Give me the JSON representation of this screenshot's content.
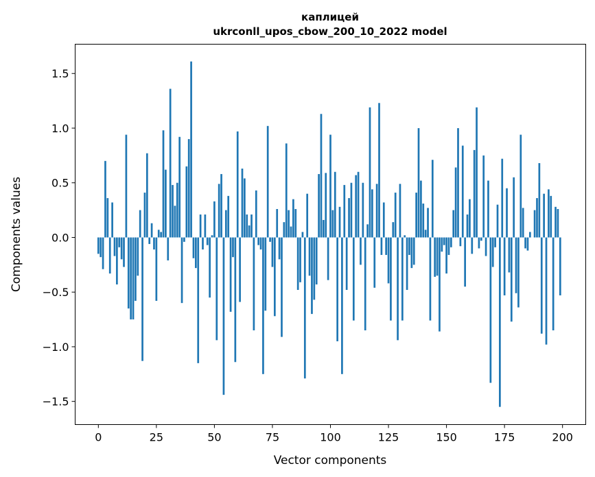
{
  "chart_data": {
    "type": "bar",
    "title": [
      "каплицей",
      "ukrconll_upos_cbow_200_10_2022 model"
    ],
    "xlabel": "Vector components",
    "ylabel": "Components values",
    "xlim": [
      -10,
      210
    ],
    "ylim": [
      -1.712,
      1.768
    ],
    "xticks": [
      0,
      25,
      50,
      75,
      100,
      125,
      150,
      175,
      200
    ],
    "xtick_labels": [
      "0",
      "25",
      "50",
      "75",
      "100",
      "125",
      "150",
      "175",
      "200"
    ],
    "yticks": [
      -1.5,
      -1.0,
      -0.5,
      0.0,
      0.5,
      1.0,
      1.5
    ],
    "ytick_labels": [
      "−1.5",
      "−1.0",
      "−0.5",
      "0.0",
      "0.5",
      "1.0",
      "1.5"
    ],
    "bar_color": "#1f77b4",
    "grid": false,
    "values": [
      -0.15,
      -0.18,
      -0.29,
      0.7,
      0.36,
      -0.33,
      0.32,
      -0.17,
      -0.43,
      -0.09,
      -0.2,
      -0.27,
      0.94,
      -0.65,
      -0.75,
      -0.75,
      -0.58,
      -0.35,
      0.25,
      -1.13,
      0.41,
      0.77,
      -0.06,
      0.13,
      -0.11,
      -0.58,
      0.07,
      0.05,
      0.98,
      0.62,
      -0.21,
      1.36,
      0.48,
      0.29,
      0.5,
      0.92,
      -0.6,
      -0.04,
      0.65,
      0.9,
      1.61,
      -0.19,
      -0.28,
      -1.15,
      0.21,
      -0.11,
      0.21,
      -0.07,
      -0.55,
      0.02,
      0.33,
      -0.94,
      0.49,
      0.58,
      -1.44,
      0.25,
      0.38,
      -0.68,
      -0.18,
      -1.14,
      0.97,
      -0.59,
      0.63,
      0.54,
      0.21,
      0.11,
      0.21,
      -0.85,
      0.43,
      -0.07,
      -0.11,
      -1.25,
      -0.67,
      1.02,
      -0.04,
      -0.27,
      -0.72,
      0.26,
      -0.2,
      -0.91,
      0.14,
      0.86,
      0.25,
      0.1,
      0.35,
      0.26,
      -0.48,
      -0.41,
      0.05,
      -1.29,
      0.4,
      -0.35,
      -0.7,
      -0.57,
      -0.43,
      0.58,
      1.13,
      0.16,
      0.59,
      -0.39,
      0.94,
      0.25,
      0.6,
      -0.95,
      0.28,
      -1.25,
      0.48,
      -0.48,
      0.36,
      0.5,
      -0.76,
      0.57,
      0.6,
      -0.25,
      0.5,
      -0.85,
      0.12,
      1.19,
      0.44,
      -0.46,
      0.49,
      1.23,
      -0.16,
      0.32,
      -0.16,
      -0.42,
      -0.76,
      0.14,
      0.41,
      -0.94,
      0.49,
      -0.76,
      0.02,
      -0.48,
      -0.16,
      -0.28,
      -0.25,
      0.41,
      1.0,
      0.52,
      0.31,
      0.07,
      0.27,
      -0.76,
      0.71,
      -0.36,
      -0.35,
      -0.86,
      -0.13,
      -0.07,
      -0.33,
      -0.16,
      -0.09,
      0.25,
      0.64,
      1.0,
      -0.08,
      0.84,
      -0.45,
      0.21,
      0.35,
      -0.15,
      0.8,
      1.19,
      -0.1,
      -0.03,
      0.75,
      -0.17,
      0.52,
      -1.33,
      -0.27,
      -0.09,
      0.3,
      -1.55,
      0.72,
      -0.53,
      0.45,
      -0.32,
      -0.77,
      0.55,
      -0.51,
      -0.64,
      0.94,
      0.27,
      -0.1,
      -0.12,
      0.05,
      0.0,
      0.25,
      0.36,
      0.68,
      -0.88,
      0.4,
      -0.98,
      0.44,
      0.38,
      -0.85,
      0.28,
      0.26,
      -0.53
    ]
  }
}
